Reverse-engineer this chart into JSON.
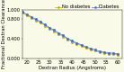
{
  "title": "",
  "xlabel": "Dextran Radius (Angstroms)",
  "ylabel": "Fractional Dextran Clearance",
  "x_no_diabetes": [
    18,
    20,
    22,
    24,
    26,
    28,
    30,
    32,
    34,
    36,
    38,
    40,
    42,
    44,
    46,
    48,
    50,
    52,
    54,
    56,
    58,
    60
  ],
  "y_no_diabetes": [
    0.93,
    0.88,
    0.83,
    0.78,
    0.73,
    0.67,
    0.61,
    0.56,
    0.5,
    0.45,
    0.39,
    0.34,
    0.3,
    0.26,
    0.22,
    0.19,
    0.16,
    0.13,
    0.11,
    0.1,
    0.09,
    0.08
  ],
  "x_diabetes": [
    18,
    20,
    22,
    24,
    26,
    28,
    30,
    32,
    34,
    36,
    38,
    40,
    42,
    44,
    46,
    48,
    50,
    52,
    54,
    56,
    58,
    60
  ],
  "y_diabetes": [
    0.95,
    0.9,
    0.85,
    0.8,
    0.75,
    0.69,
    0.63,
    0.58,
    0.52,
    0.47,
    0.41,
    0.36,
    0.32,
    0.28,
    0.24,
    0.21,
    0.18,
    0.15,
    0.13,
    0.12,
    0.11,
    0.1
  ],
  "color_no_diabetes": "#C8A800",
  "color_diabetes": "#4472C4",
  "legend_no_diabetes": "No diabetes",
  "legend_diabetes": "Diabetes",
  "ylim": [
    0.0,
    1.0
  ],
  "xlim": [
    18,
    62
  ],
  "xticks": [
    20,
    25,
    30,
    35,
    40,
    45,
    50,
    55,
    60
  ],
  "ytick_vals": [
    0.0,
    0.4,
    0.8,
    1.0
  ],
  "ytick_labels": [
    "0.000",
    "0.400",
    "0.800",
    "1.000"
  ],
  "background_color": "#FAFAE8",
  "fontsize": 3.8
}
